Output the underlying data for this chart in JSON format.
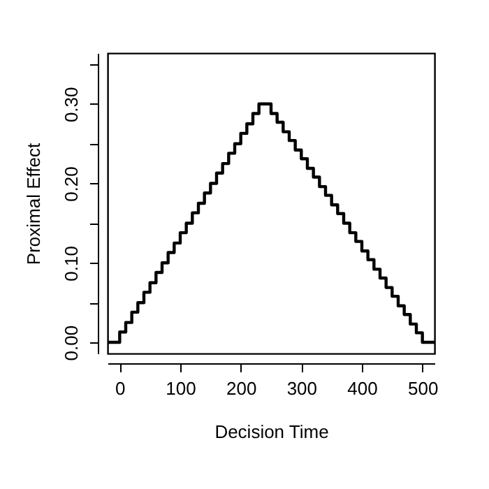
{
  "chart_data": {
    "type": "step",
    "xlabel": "Decision Time",
    "ylabel": "Proximal Effect",
    "x": [
      -20,
      0,
      10,
      20,
      30,
      40,
      50,
      60,
      70,
      80,
      90,
      100,
      110,
      120,
      130,
      140,
      150,
      160,
      170,
      180,
      190,
      200,
      210,
      220,
      230,
      250,
      260,
      270,
      280,
      290,
      300,
      310,
      320,
      330,
      340,
      350,
      360,
      370,
      380,
      390,
      400,
      410,
      420,
      430,
      440,
      450,
      460,
      470,
      480,
      490,
      500,
      520
    ],
    "series": [
      {
        "color": "#000000",
        "values": [
          0,
          0.013,
          0.025,
          0.038,
          0.05,
          0.063,
          0.075,
          0.088,
          0.1,
          0.113,
          0.125,
          0.138,
          0.15,
          0.163,
          0.175,
          0.188,
          0.2,
          0.213,
          0.225,
          0.238,
          0.25,
          0.263,
          0.275,
          0.288,
          0.3,
          0.288,
          0.277,
          0.265,
          0.254,
          0.242,
          0.231,
          0.219,
          0.208,
          0.196,
          0.185,
          0.173,
          0.162,
          0.15,
          0.138,
          0.127,
          0.115,
          0.104,
          0.092,
          0.081,
          0.069,
          0.058,
          0.046,
          0.035,
          0.023,
          0.012,
          0,
          0
        ]
      }
    ],
    "xlim": [
      -20,
      520
    ],
    "xticks": [
      0,
      100,
      200,
      300,
      400,
      500
    ],
    "ylim": [
      -0.014,
      0.364
    ],
    "yticks": [
      {
        "value": 0,
        "label": "0.00"
      },
      {
        "value": 0.05,
        "label": null
      },
      {
        "value": 0.1,
        "label": "0.10"
      },
      {
        "value": 0.15,
        "label": null
      },
      {
        "value": 0.2,
        "label": "0.20"
      },
      {
        "value": 0.25,
        "label": null
      },
      {
        "value": 0.3,
        "label": "0.30"
      },
      {
        "value": 0.35,
        "label": null
      }
    ],
    "grid": false,
    "marker": "none",
    "line_style": "solid"
  }
}
